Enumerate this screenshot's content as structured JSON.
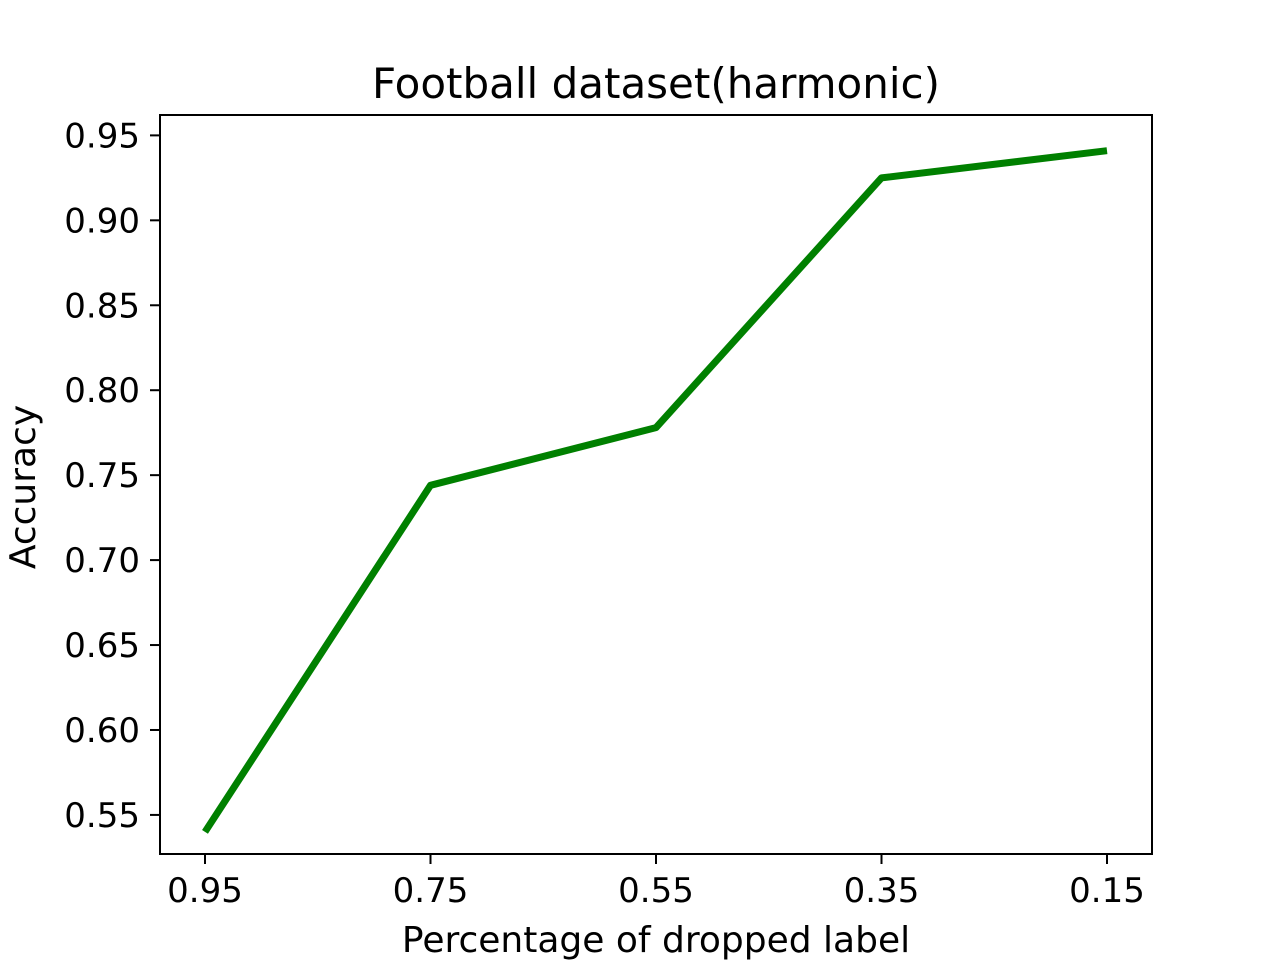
{
  "chart_data": {
    "type": "line",
    "title": "Football dataset(harmonic)",
    "xlabel": "Percentage of dropped label",
    "ylabel": "Accuracy",
    "categories": [
      "0.95",
      "0.75",
      "0.55",
      "0.35",
      "0.15"
    ],
    "x": [
      0.95,
      0.75,
      0.55,
      0.35,
      0.15
    ],
    "yticks": [
      "0.55",
      "0.60",
      "0.65",
      "0.70",
      "0.75",
      "0.80",
      "0.85",
      "0.90",
      "0.95"
    ],
    "ylim": [
      0.527,
      0.962
    ],
    "series": [
      {
        "color": "#008000",
        "values": [
          0.54,
          0.744,
          0.778,
          0.925,
          0.941
        ]
      }
    ],
    "grid": false,
    "legend": "none"
  }
}
